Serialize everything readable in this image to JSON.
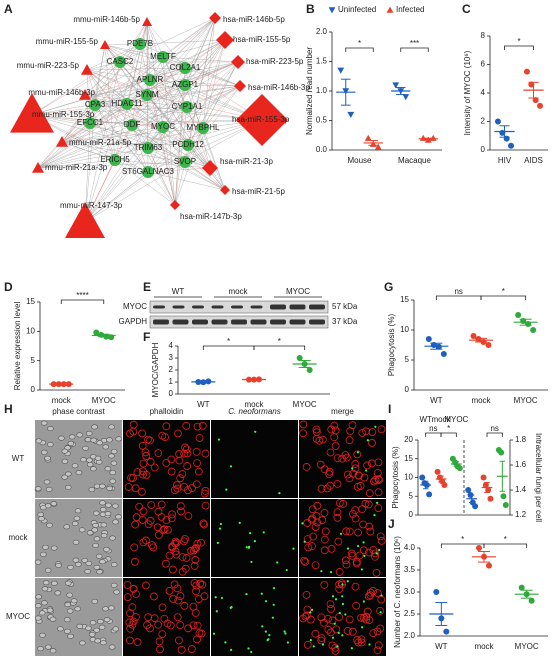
{
  "network": {
    "panel": "A",
    "mirnas": [
      "mmu-miR-146b-5p",
      "hsa-miR-146b-5p",
      "mmu-miR-155-5p",
      "hsa-miR-155-5p",
      "mmu-miR-223-5p",
      "hsa-miR-223-5p",
      "mmu-miR-146b-3p",
      "hsa-miR-146b-3p",
      "mmu-miR-155-3p",
      "hsa-miR-155-3p",
      "mmu-miR-21a-5p",
      "mmu-miR-21a-3p",
      "hsa-miR-21-3p",
      "hsa-miR-21-5p",
      "mmu-miR-147-3p",
      "hsa-miR-147b-3p"
    ],
    "genes": [
      "PDE7B",
      "MELTF",
      "CASC2",
      "APLNR",
      "COL2A1",
      "AZGP1",
      "SYNM",
      "HDAC11",
      "CYP1A1",
      "CPA3",
      "EFCC1",
      "DDF",
      "MYOC",
      "MYBPHL",
      "PCDH12",
      "TRIM63",
      "ERICH5",
      "SVOP",
      "ST6GALNAC3"
    ]
  },
  "blot": {
    "panel": "E",
    "lanes": [
      "WT",
      "mock",
      "MYOC"
    ],
    "bands": [
      {
        "name": "MYOC",
        "size": "57 kDa"
      },
      {
        "name": "GAPDH",
        "size": "37 kDa"
      }
    ]
  },
  "micrographs": {
    "panel": "H",
    "columns": [
      "phase contrast",
      "phalloidin",
      "C. neoformans",
      "merge"
    ],
    "rows": [
      "WT",
      "mock",
      "MYOC"
    ]
  },
  "chart_data": [
    {
      "type": "dot",
      "panel": "B",
      "ylabel": "Normalized read number",
      "categories": [
        "Mouse",
        "Macaque"
      ],
      "ylim": [
        0,
        2
      ],
      "yticks": [
        {
          "value": 0,
          "label": "0.0"
        },
        {
          "value": 0.5,
          "label": "0.5"
        },
        {
          "value": 1,
          "label": "1.0"
        },
        {
          "value": 1.5,
          "label": "1.5"
        },
        {
          "value": 2,
          "label": "2.0"
        }
      ],
      "legend": "top",
      "series": [
        {
          "name": "Uninfected",
          "color": "#1f5fbf",
          "marker": "triangle-down",
          "values": [
            [
              1.35,
              1.0,
              0.6
            ],
            [
              1.1,
              1.0,
              0.9
            ]
          ],
          "means": [
            0.98,
            1.0
          ],
          "sems": [
            0.22,
            0.06
          ]
        },
        {
          "name": "Infected",
          "color": "#e8412c",
          "marker": "triangle",
          "values": [
            [
              0.2,
              0.1,
              0.05
            ],
            [
              0.2,
              0.17,
              0.2
            ]
          ],
          "means": [
            0.12,
            0.19
          ],
          "sems": [
            0.04,
            0.01
          ]
        }
      ],
      "annotations": [
        "*",
        "***"
      ]
    },
    {
      "type": "dot",
      "panel": "C",
      "ylabel": "Intensity of MYOC (10⁶)",
      "categories": [
        "HIV",
        "AIDS"
      ],
      "ylim": [
        0,
        8
      ],
      "yticks": [
        0,
        2,
        4,
        6,
        8
      ],
      "series": [
        {
          "colors": [
            "#1f5fbf",
            "#e8412c"
          ],
          "marker": "circle",
          "values": [
            [
              2.0,
              1.2,
              0.8,
              0.3
            ],
            [
              5.5,
              4.6,
              3.5,
              3.1
            ]
          ],
          "means": [
            1.3,
            4.2
          ],
          "sems": [
            0.4,
            0.55
          ]
        }
      ],
      "annotations": [
        "*"
      ]
    },
    {
      "type": "dot",
      "panel": "D",
      "ylabel": "Relative expression level",
      "categories": [
        "mock",
        "MYOC"
      ],
      "ylim": [
        0,
        15
      ],
      "yticks": [
        0,
        5,
        10,
        15
      ],
      "series": [
        {
          "colors": [
            "#e8412c",
            "#2eaa3a"
          ],
          "marker": "circle",
          "values": [
            [
              1.0,
              1.0,
              1.0,
              1.0
            ],
            [
              9.8,
              9.4,
              9.1,
              9.0
            ]
          ],
          "means": [
            1.0,
            9.3
          ],
          "sems": [
            0.0,
            0.2
          ]
        }
      ],
      "annotations": [
        "****"
      ]
    },
    {
      "type": "dot",
      "panel": "F",
      "ylabel": "MYOC/GAPDH",
      "categories": [
        "WT",
        "mock",
        "MYOC"
      ],
      "ylim": [
        0,
        4
      ],
      "yticks": [
        0,
        1,
        2,
        3,
        4
      ],
      "series": [
        {
          "colors": [
            "#1f5fbf",
            "#e8412c",
            "#2eaa3a"
          ],
          "marker": "circle",
          "values": [
            [
              1.0,
              0.98,
              1.05
            ],
            [
              1.2,
              1.2,
              1.22
            ],
            [
              3.0,
              2.5,
              2.0
            ]
          ],
          "means": [
            1.01,
            1.21,
            2.5
          ],
          "sems": [
            0.02,
            0.01,
            0.29
          ]
        }
      ],
      "annotations": [
        "*",
        "*"
      ]
    },
    {
      "type": "dot",
      "panel": "G",
      "ylabel": "Phagocytosis (%)",
      "categories": [
        "WT",
        "mock",
        "MYOC"
      ],
      "ylim": [
        0,
        15
      ],
      "yticks": [
        0,
        5,
        10,
        15
      ],
      "series": [
        {
          "colors": [
            "#1f5fbf",
            "#e8412c",
            "#2eaa3a"
          ],
          "marker": "circle",
          "values": [
            [
              8.5,
              7.5,
              7.2,
              6.0
            ],
            [
              9.0,
              8.5,
              8.0,
              7.5
            ],
            [
              12.5,
              11.5,
              11.0,
              10.0
            ]
          ],
          "means": [
            7.3,
            8.3,
            11.3
          ],
          "sems": [
            0.5,
            0.3,
            0.5
          ]
        }
      ],
      "annotations": [
        "ns",
        "*"
      ]
    },
    {
      "type": "dot",
      "panel": "I",
      "ylabel": "Phagocytosis (%)",
      "y2label": "Intracellular fungi per cell",
      "categories": [
        "WT",
        "mock",
        "MYOC"
      ],
      "ylim": [
        0,
        20
      ],
      "yticks": [
        0,
        5,
        10,
        15,
        20
      ],
      "y2lim": [
        1.2,
        1.8
      ],
      "y2ticks": [
        1.2,
        1.4,
        1.6,
        1.8
      ],
      "series": [
        {
          "colors": [
            "#1f5fbf",
            "#e8412c",
            "#2eaa3a"
          ],
          "marker": "circle",
          "values": [
            [
              10,
              8.5,
              8,
              5.5
            ],
            [
              11.5,
              10,
              9,
              8
            ],
            [
              15,
              14,
              13,
              12.5
            ]
          ],
          "means": [
            8.0,
            9.6,
            13.6
          ],
          "sems": [
            1.0,
            0.8,
            0.6
          ]
        },
        {
          "axis": "y2",
          "colors": [
            "#1f5fbf",
            "#e8412c",
            "#2eaa3a"
          ],
          "marker": "circle",
          "values": [
            [
              1.4,
              1.36,
              1.3,
              1.27
            ],
            [
              1.5,
              1.44,
              1.4,
              1.33
            ],
            [
              1.72,
              1.7,
              1.35,
              1.28
            ]
          ],
          "means": [
            1.33,
            1.42,
            1.51
          ],
          "sems": [
            0.03,
            0.04,
            0.12
          ]
        }
      ],
      "annotations": [
        "ns",
        "*",
        "ns"
      ]
    },
    {
      "type": "dot",
      "panel": "J",
      "ylabel": "Number of C. neoformans (10⁶)",
      "categories": [
        "WT",
        "mock",
        "MYOC"
      ],
      "ylim": [
        2,
        4
      ],
      "yticks": [
        {
          "value": 2,
          "label": "2.0"
        },
        {
          "value": 2.5,
          "label": "2.5"
        },
        {
          "value": 3,
          "label": "3.0"
        },
        {
          "value": 3.5,
          "label": "3.5"
        },
        {
          "value": 4,
          "label": "4.0"
        }
      ],
      "series": [
        {
          "colors": [
            "#1f5fbf",
            "#e8412c",
            "#2eaa3a"
          ],
          "marker": "circle",
          "values": [
            [
              3.0,
              2.4,
              2.1
            ],
            [
              4.0,
              3.8,
              3.6
            ],
            [
              3.1,
              2.95,
              2.8
            ]
          ],
          "means": [
            2.5,
            3.8,
            2.95
          ],
          "sems": [
            0.26,
            0.12,
            0.09
          ]
        }
      ],
      "annotations": [
        "*",
        "*"
      ]
    }
  ]
}
